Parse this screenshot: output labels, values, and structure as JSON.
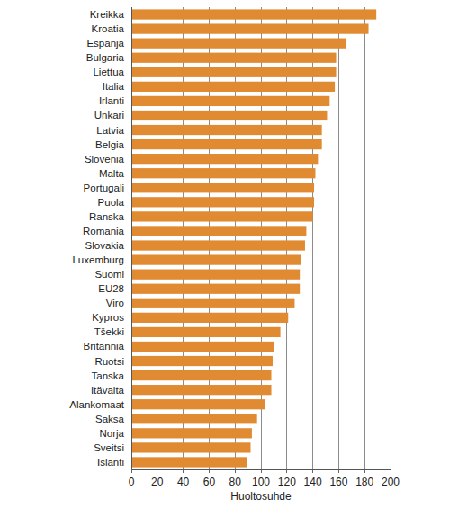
{
  "chart_data": {
    "type": "bar",
    "orientation": "horizontal",
    "x_label": "Huoltosuhde",
    "categories": [
      "Kreikka",
      "Kroatia",
      "Espanja",
      "Bulgaria",
      "Liettua",
      "Italia",
      "Irlanti",
      "Unkari",
      "Latvia",
      "Belgia",
      "Slovenia",
      "Malta",
      "Portugali",
      "Puola",
      "Ranska",
      "Romania",
      "Slovakia",
      "Luxemburg",
      "Suomi",
      "EU28",
      "Viro",
      "Kypros",
      "Tšekki",
      "Britannia",
      "Ruotsi",
      "Tanska",
      "Itävalta",
      "Alankomaat",
      "Saksa",
      "Norja",
      "Sveitsi",
      "Islanti"
    ],
    "values": [
      189,
      183,
      166,
      158,
      158,
      157,
      153,
      151,
      147,
      147,
      144,
      142,
      141,
      141,
      140,
      135,
      134,
      131,
      130,
      130,
      126,
      121,
      115,
      110,
      109,
      108,
      108,
      103,
      97,
      93,
      92,
      89
    ],
    "color": "#e08a32",
    "xlim": [
      0,
      200
    ],
    "xticks": [
      0,
      20,
      40,
      60,
      80,
      100,
      120,
      140,
      160,
      180,
      200
    ],
    "grid": true
  }
}
